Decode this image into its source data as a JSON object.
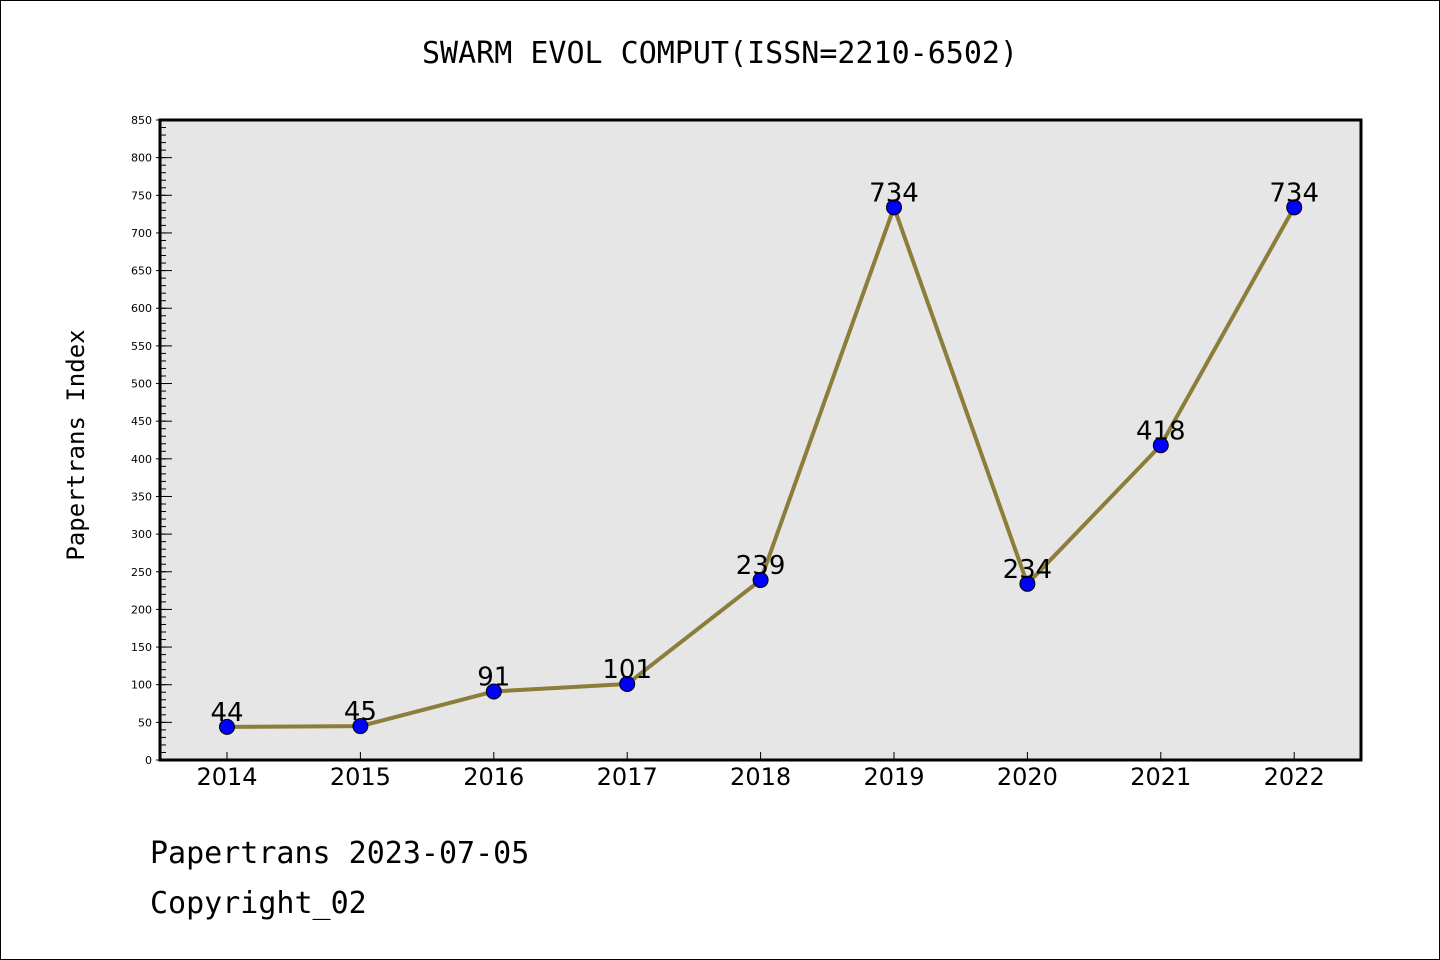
{
  "header": {
    "title": "SWARM EVOL COMPUT(ISSN=2210-6502)"
  },
  "footer": {
    "line1": "Papertrans 2023-07-05",
    "line2": "Copyright_02"
  },
  "chart_data": {
    "type": "line",
    "title": "SWARM EVOL COMPUT(ISSN=2210-6502)",
    "xlabel": "",
    "ylabel": "Papertrans Index",
    "categories": [
      "2014",
      "2015",
      "2016",
      "2017",
      "2018",
      "2019",
      "2020",
      "2021",
      "2022"
    ],
    "values": [
      44,
      45,
      91,
      101,
      239,
      734,
      234,
      418,
      734
    ],
    "data_labels": [
      "44",
      "45",
      "91",
      "101",
      "239",
      "734",
      "234",
      "418",
      "734"
    ],
    "ylim": [
      0,
      850
    ],
    "yticks": [
      0,
      50,
      100,
      150,
      200,
      250,
      300,
      350,
      400,
      450,
      500,
      550,
      600,
      650,
      700,
      750,
      800,
      850
    ],
    "grid": false,
    "colors": {
      "line": "#8b7d3a",
      "marker": "#0000ff",
      "plot_bg": "#e6e6e6"
    }
  }
}
